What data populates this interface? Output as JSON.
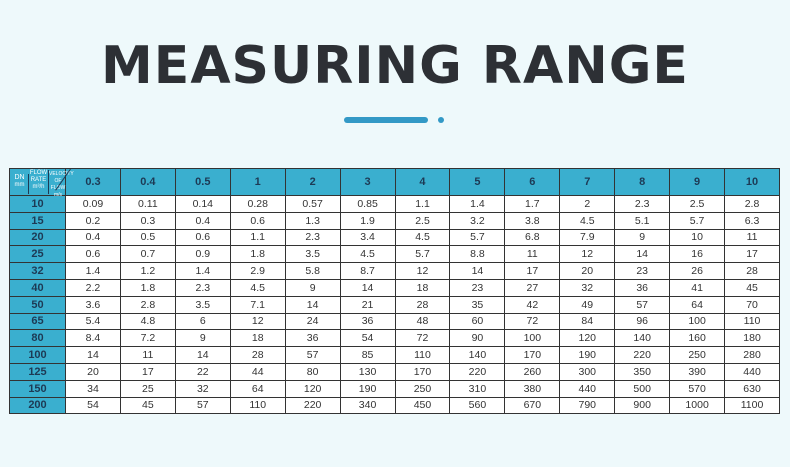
{
  "title": "MEASURING RANGE",
  "accent_color": "#3399c6",
  "header_color": "#3aafcf",
  "table": {
    "corner": {
      "dn": "DN",
      "dn_unit": "mm",
      "flow_rate": "FLOW RATE",
      "flow_unit": "m³/h",
      "velocity": "VELOCITY OF FLOW",
      "velocity_unit": "m/s"
    },
    "velocities": [
      "0.3",
      "0.4",
      "0.5",
      "1",
      "2",
      "3",
      "4",
      "5",
      "6",
      "7",
      "8",
      "9",
      "10"
    ],
    "rows": [
      {
        "dn": "10",
        "values": [
          "0.09",
          "0.11",
          "0.14",
          "0.28",
          "0.57",
          "0.85",
          "1.1",
          "1.4",
          "1.7",
          "2",
          "2.3",
          "2.5",
          "2.8"
        ]
      },
      {
        "dn": "15",
        "values": [
          "0.2",
          "0.3",
          "0.4",
          "0.6",
          "1.3",
          "1.9",
          "2.5",
          "3.2",
          "3.8",
          "4.5",
          "5.1",
          "5.7",
          "6.3"
        ]
      },
      {
        "dn": "20",
        "values": [
          "0.4",
          "0.5",
          "0.6",
          "1.1",
          "2.3",
          "3.4",
          "4.5",
          "5.7",
          "6.8",
          "7.9",
          "9",
          "10",
          "11"
        ]
      },
      {
        "dn": "25",
        "values": [
          "0.6",
          "0.7",
          "0.9",
          "1.8",
          "3.5",
          "4.5",
          "5.7",
          "8.8",
          "11",
          "12",
          "14",
          "16",
          "17"
        ]
      },
      {
        "dn": "32",
        "values": [
          "1.4",
          "1.2",
          "1.4",
          "2.9",
          "5.8",
          "8.7",
          "12",
          "14",
          "17",
          "20",
          "23",
          "26",
          "28"
        ]
      },
      {
        "dn": "40",
        "values": [
          "2.2",
          "1.8",
          "2.3",
          "4.5",
          "9",
          "14",
          "18",
          "23",
          "27",
          "32",
          "36",
          "41",
          "45"
        ]
      },
      {
        "dn": "50",
        "values": [
          "3.6",
          "2.8",
          "3.5",
          "7.1",
          "14",
          "21",
          "28",
          "35",
          "42",
          "49",
          "57",
          "64",
          "70"
        ]
      },
      {
        "dn": "65",
        "values": [
          "5.4",
          "4.8",
          "6",
          "12",
          "24",
          "36",
          "48",
          "60",
          "72",
          "84",
          "96",
          "100",
          "110"
        ]
      },
      {
        "dn": "80",
        "values": [
          "8.4",
          "7.2",
          "9",
          "18",
          "36",
          "54",
          "72",
          "90",
          "100",
          "120",
          "140",
          "160",
          "180"
        ]
      },
      {
        "dn": "100",
        "values": [
          "14",
          "11",
          "14",
          "28",
          "57",
          "85",
          "110",
          "140",
          "170",
          "190",
          "220",
          "250",
          "280"
        ]
      },
      {
        "dn": "125",
        "values": [
          "20",
          "17",
          "22",
          "44",
          "80",
          "130",
          "170",
          "220",
          "260",
          "300",
          "350",
          "390",
          "440"
        ]
      },
      {
        "dn": "150",
        "values": [
          "34",
          "25",
          "32",
          "64",
          "120",
          "190",
          "250",
          "310",
          "380",
          "440",
          "500",
          "570",
          "630"
        ]
      },
      {
        "dn": "200",
        "values": [
          "54",
          "45",
          "57",
          "110",
          "220",
          "340",
          "450",
          "560",
          "670",
          "790",
          "900",
          "1000",
          "1100"
        ]
      }
    ]
  }
}
